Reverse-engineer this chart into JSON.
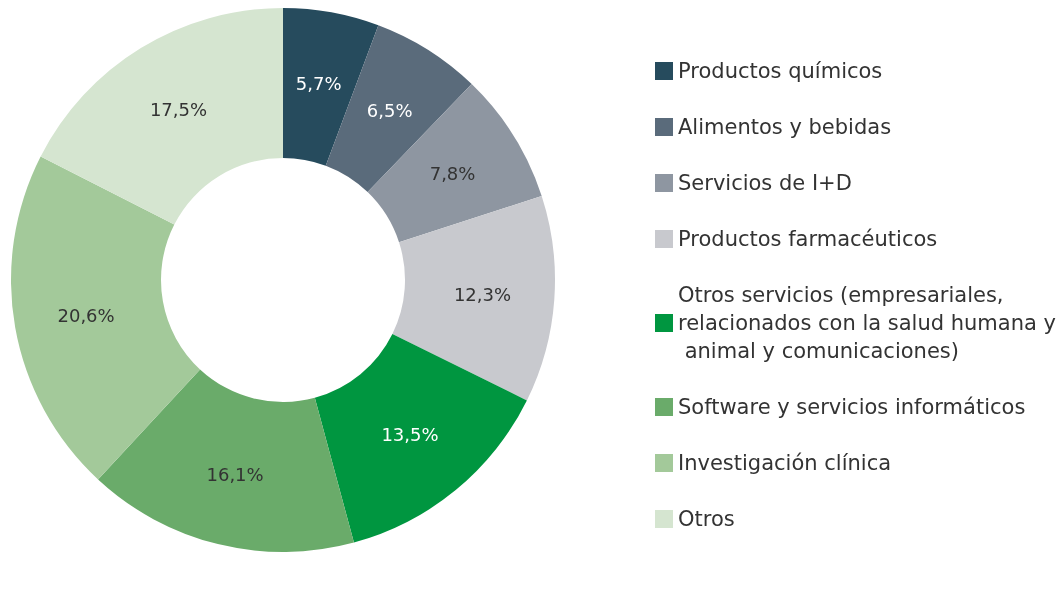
{
  "chart_data": {
    "type": "donut",
    "categories": [
      "Productos químicos",
      "Alimentos y bebidas",
      "Servicios de I+D",
      "Productos farmacéuticos",
      "Otros servicios (empresariales, relacionados con la salud humana y animal y comunicaciones)",
      "Software y servicios informáticos",
      "Investigación clínica",
      "Otros"
    ],
    "values": [
      5.7,
      6.5,
      7.8,
      12.3,
      13.5,
      16.1,
      20.6,
      17.5
    ],
    "value_labels": [
      "5,7%",
      "6,5%",
      "7,8%",
      "12,3%",
      "13,5%",
      "16,1%",
      "20,6%",
      "17,5%"
    ],
    "colors": [
      "#264b5d",
      "#5a6b7b",
      "#8e96a1",
      "#c8c9ce",
      "#009640",
      "#6aab6a",
      "#a3c99a",
      "#d5e5d0"
    ],
    "legend": "right"
  }
}
